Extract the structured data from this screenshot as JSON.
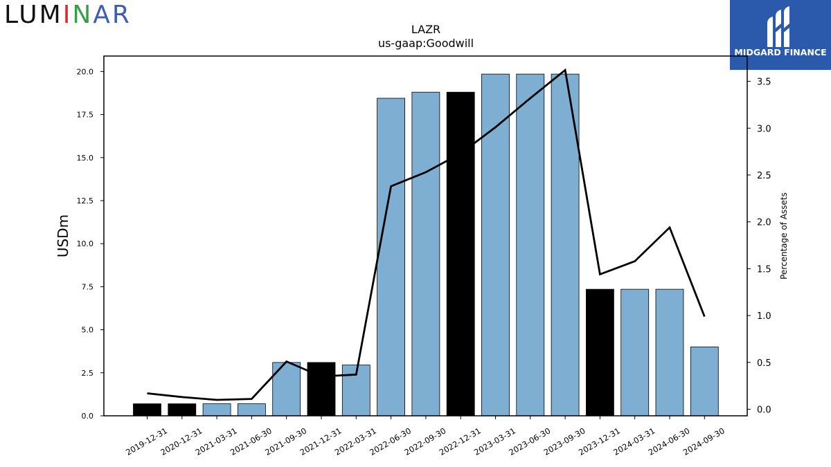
{
  "logo": {
    "text_parts": [
      "LUM",
      "I",
      "N",
      "AR"
    ],
    "text_colors": [
      "#111111",
      "#e0262b",
      "#3b9c46",
      "#3a5fb4"
    ]
  },
  "brand": {
    "name": "MIDGARD FINANCE",
    "background": "#2b5aad",
    "text_color": "#ffffff"
  },
  "chart_data": {
    "type": "bar",
    "title": "LAZR",
    "subtitle": "us-gaap:Goodwill",
    "ylabel": "USDm",
    "y2label": "Percentage of Assets",
    "categories": [
      "2019-12-31",
      "2020-12-31",
      "2021-03-31",
      "2021-06-30",
      "2021-09-30",
      "2021-12-31",
      "2022-03-31",
      "2022-06-30",
      "2022-09-30",
      "2022-12-31",
      "2023-03-31",
      "2023-06-30",
      "2023-09-30",
      "2023-12-31",
      "2024-03-31",
      "2024-06-30",
      "2024-09-30"
    ],
    "series": [
      {
        "values": [
          0.7,
          0.7,
          0.7,
          0.7,
          3.1,
          3.1,
          2.95,
          18.45,
          18.8,
          18.8,
          19.85,
          19.85,
          19.85,
          7.35,
          7.35,
          7.35,
          4.0
        ],
        "highlight": [
          true,
          true,
          false,
          false,
          false,
          true,
          false,
          false,
          false,
          true,
          false,
          false,
          false,
          true,
          false,
          false,
          false
        ],
        "color": "#7faed3",
        "highlight_color": "#000000"
      },
      {
        "type": "line",
        "axis": "right",
        "values": [
          0.17,
          0.13,
          0.1,
          0.11,
          0.51,
          0.35,
          0.37,
          2.38,
          2.53,
          2.73,
          3.01,
          3.32,
          3.62,
          1.44,
          1.58,
          1.94,
          0.99
        ],
        "color": "#000000"
      }
    ],
    "ylim": [
      0,
      20.9
    ],
    "yticks": [
      "0.0",
      "2.5",
      "5.0",
      "7.5",
      "10.0",
      "12.5",
      "15.0",
      "17.5",
      "20.0"
    ],
    "y2lim": [
      -0.07,
      3.77
    ],
    "y2ticks": [
      "0.0",
      "0.5",
      "1.0",
      "1.5",
      "2.0",
      "2.5",
      "3.0",
      "3.5"
    ],
    "grid": false,
    "legend": "none"
  }
}
